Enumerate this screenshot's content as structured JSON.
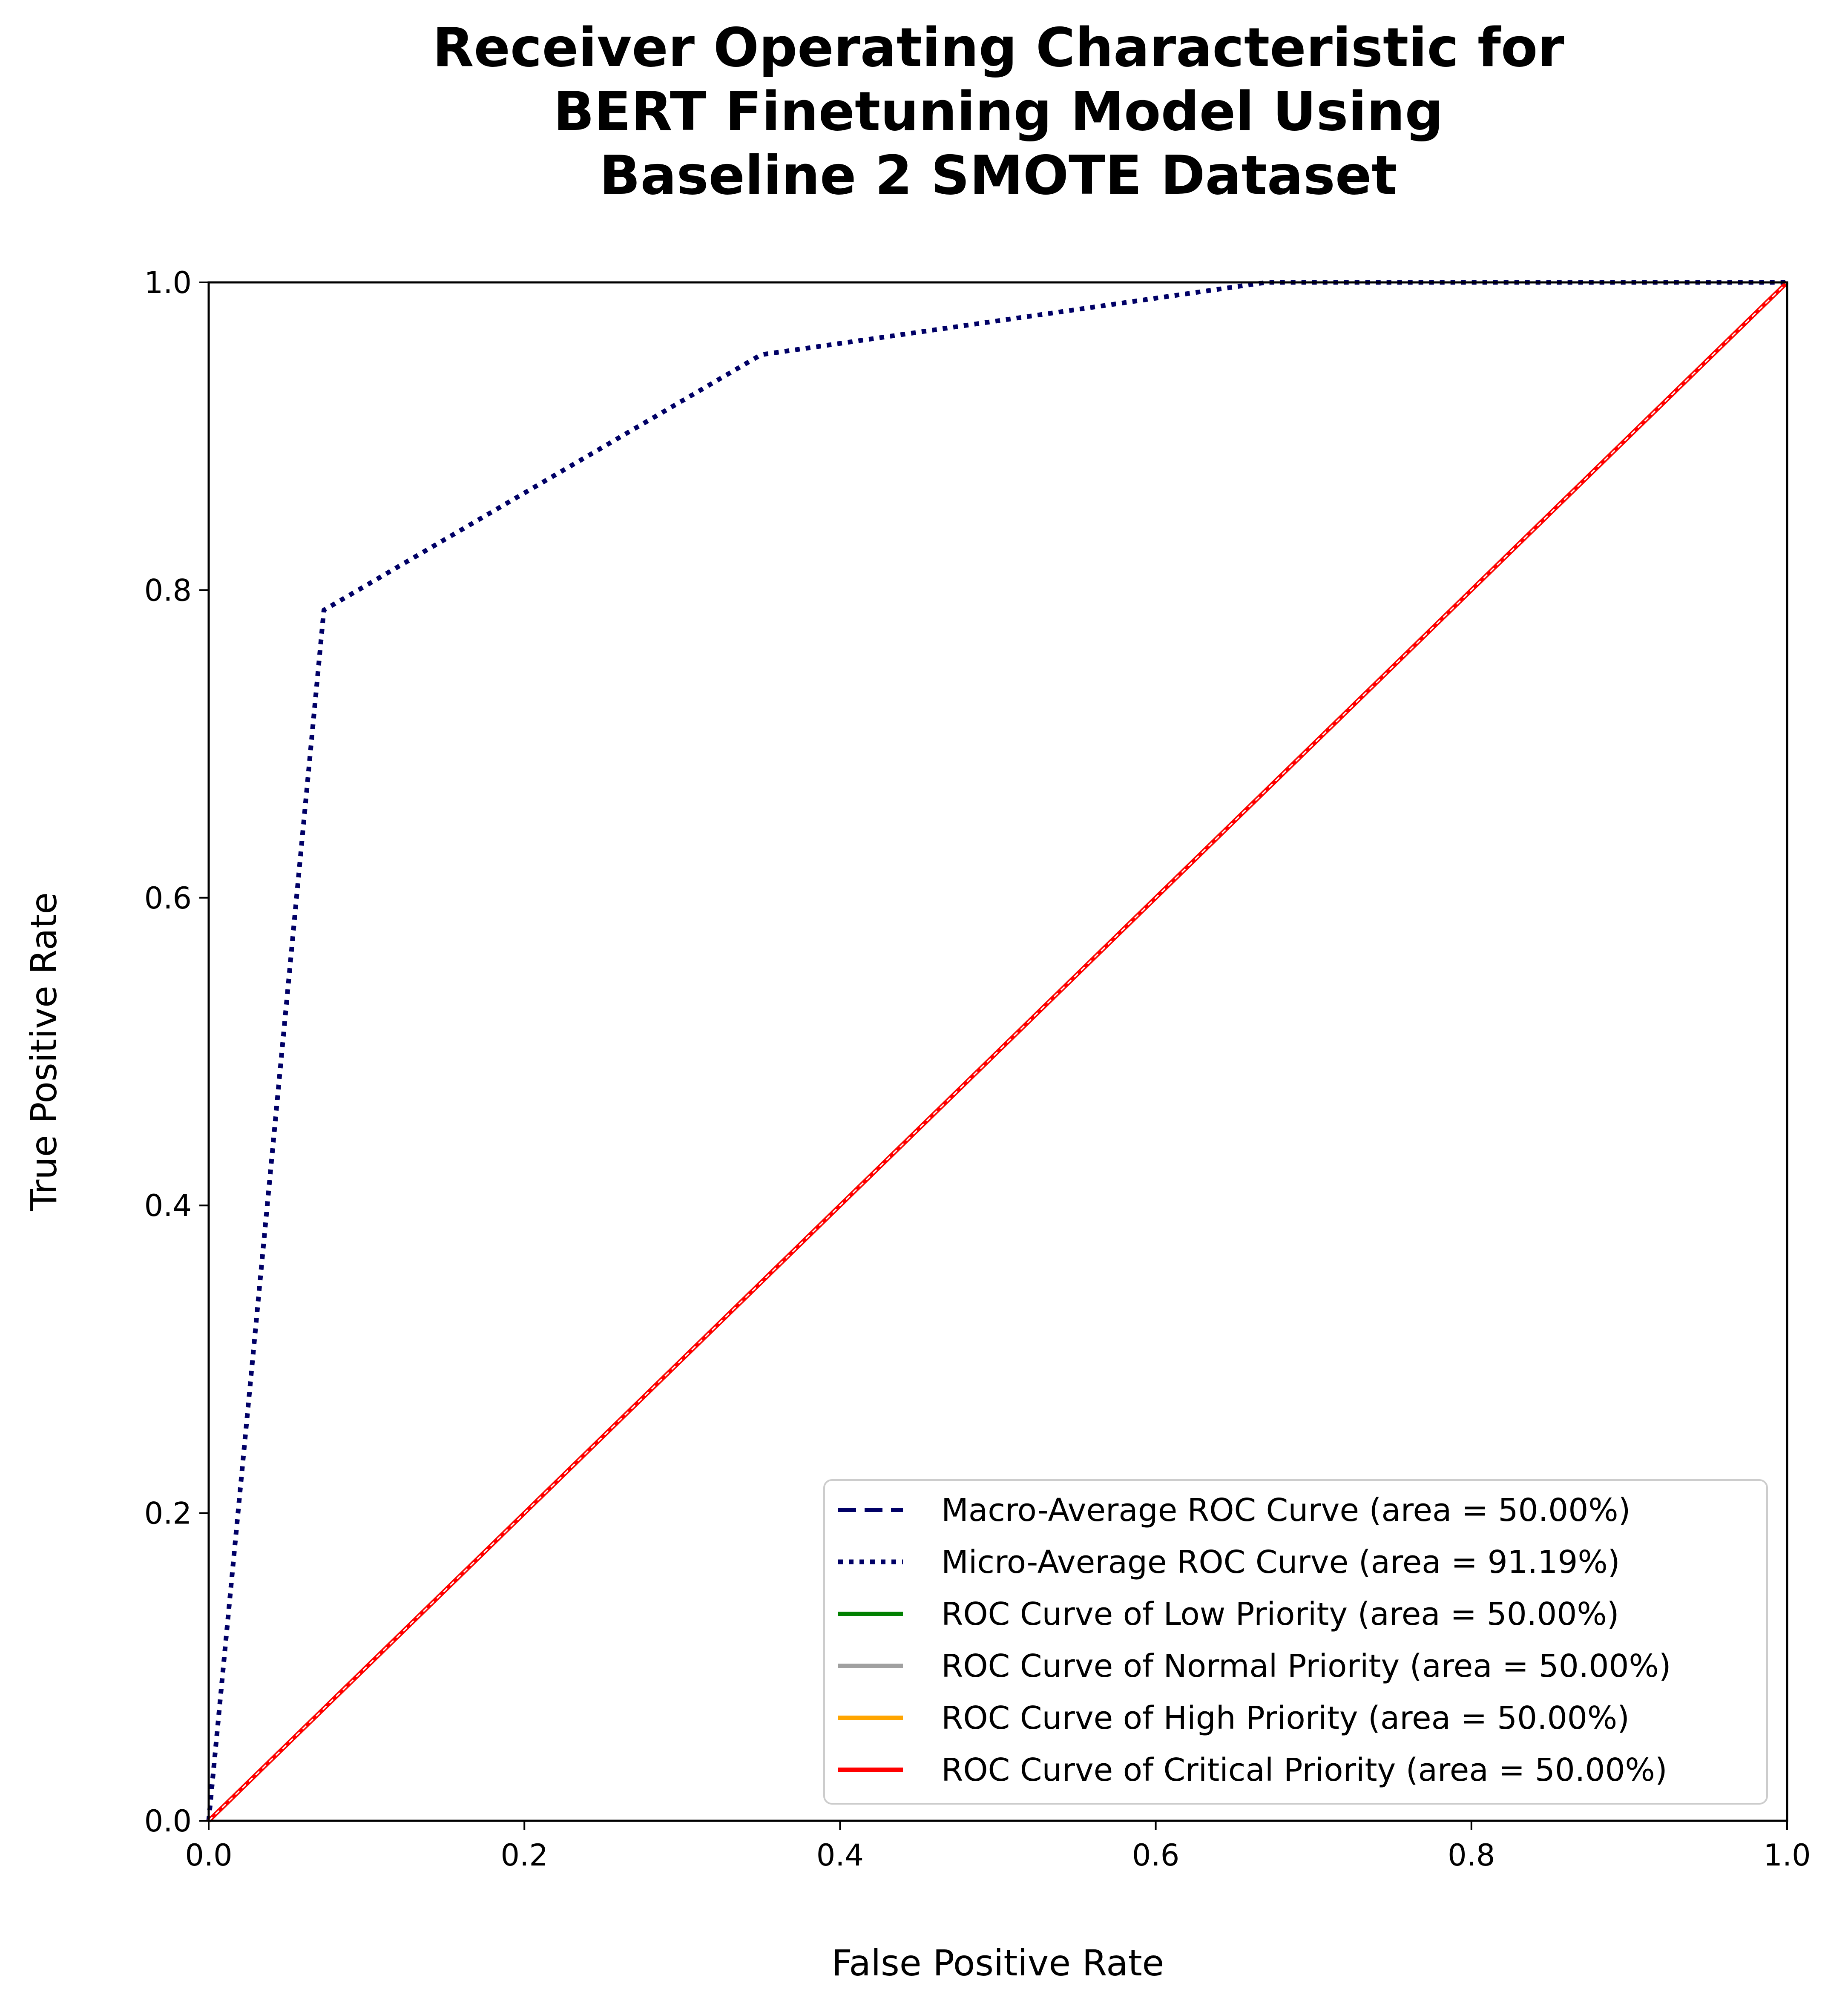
{
  "chart_data": {
    "type": "line",
    "title": [
      "Receiver Operating Characteristic for",
      "BERT Finetuning Model Using",
      "Baseline 2 SMOTE Dataset"
    ],
    "xlabel": "False Positive Rate",
    "ylabel": "True Positive Rate",
    "xlim": [
      0.0,
      1.0
    ],
    "ylim": [
      0.0,
      1.0
    ],
    "xticks": [
      "0.0",
      "0.2",
      "0.4",
      "0.6",
      "0.8",
      "1.0"
    ],
    "yticks": [
      "0.0",
      "0.2",
      "0.4",
      "0.6",
      "0.8",
      "1.0"
    ],
    "grid": false,
    "legend_position": "lower-right",
    "series": [
      {
        "name": "Macro-Average ROC Curve (area = 50.00%)",
        "color": "#000066",
        "style": "dashed",
        "x": [
          0.0,
          1.0
        ],
        "y": [
          0.0,
          1.0
        ]
      },
      {
        "name": "Micro-Average ROC Curve (area = 91.19%)",
        "color": "#000066",
        "style": "dotted",
        "x": [
          0.0,
          0.073,
          0.35,
          0.67,
          1.0
        ],
        "y": [
          0.0,
          0.787,
          0.953,
          1.0,
          1.0
        ]
      },
      {
        "name": "ROC Curve of Low Priority (area = 50.00%)",
        "color": "#008000",
        "style": "solid",
        "x": [
          0.0,
          1.0
        ],
        "y": [
          0.0,
          1.0
        ]
      },
      {
        "name": "ROC Curve of Normal Priority (area = 50.00%)",
        "color": "#a0a0a0",
        "style": "solid",
        "x": [
          0.0,
          1.0
        ],
        "y": [
          0.0,
          1.0
        ]
      },
      {
        "name": "ROC Curve of High Priority (area = 50.00%)",
        "color": "#ffa500",
        "style": "solid",
        "x": [
          0.0,
          1.0
        ],
        "y": [
          0.0,
          1.0
        ]
      },
      {
        "name": "ROC Curve of Critical Priority (area = 50.00%)",
        "color": "#ff0000",
        "style": "solid",
        "x": [
          0.0,
          1.0
        ],
        "y": [
          0.0,
          1.0
        ]
      }
    ],
    "reference_line": {
      "color": "#ffffff",
      "style": "dashed",
      "x": [
        0.0,
        1.0
      ],
      "y": [
        0.0,
        1.0
      ]
    }
  }
}
